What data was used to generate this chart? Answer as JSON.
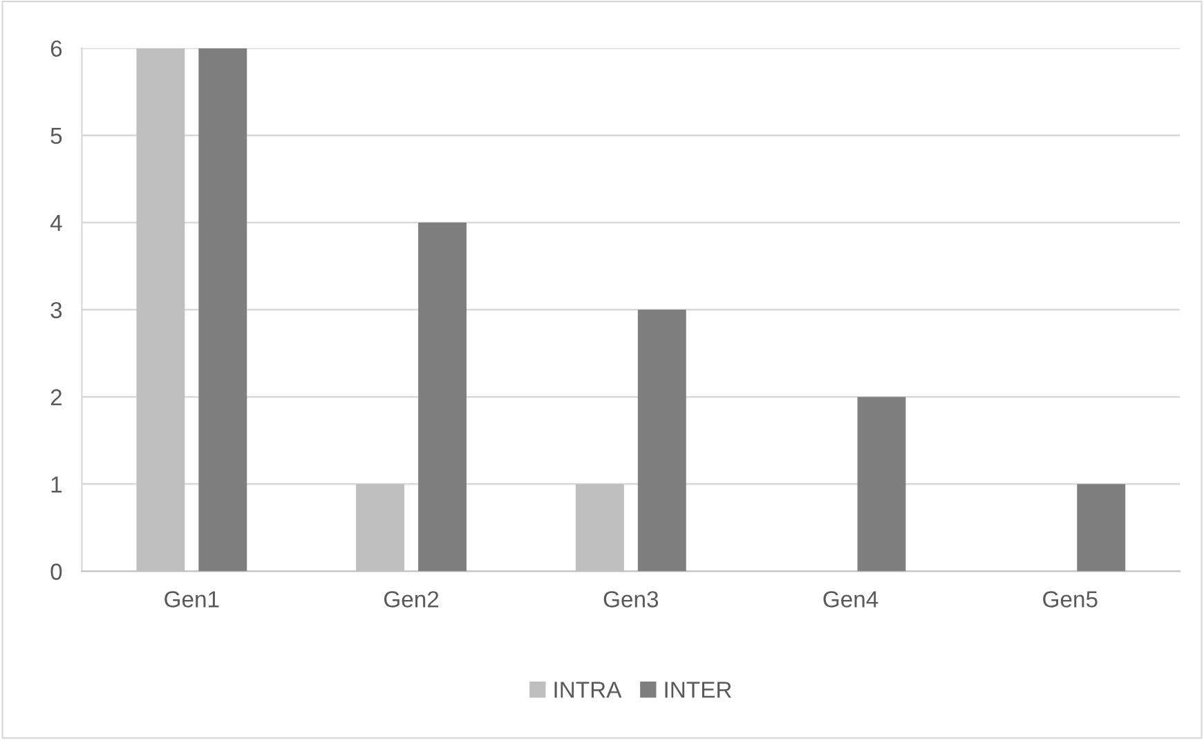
{
  "chart_data": {
    "type": "bar",
    "categories": [
      "Gen1",
      "Gen2",
      "Gen3",
      "Gen4",
      "Gen5"
    ],
    "series": [
      {
        "name": "INTRA",
        "color": "#bfbfbf",
        "values": [
          6,
          1,
          1,
          0,
          0
        ]
      },
      {
        "name": "INTER",
        "color": "#7f7f7f",
        "values": [
          6,
          4,
          3,
          2,
          1
        ]
      }
    ],
    "ylim": [
      0,
      6
    ],
    "yticks": [
      0,
      1,
      2,
      3,
      4,
      5,
      6
    ],
    "grid": "y",
    "legend": "bottom"
  }
}
